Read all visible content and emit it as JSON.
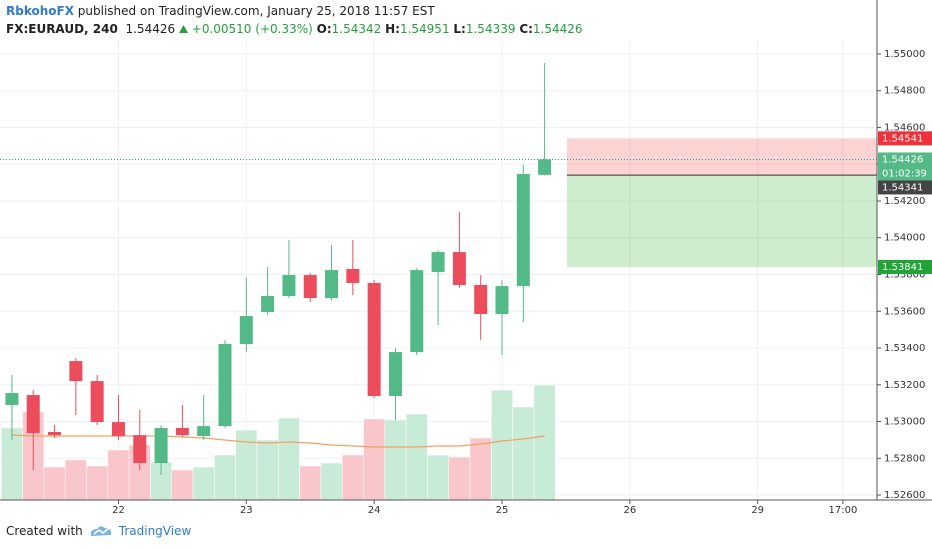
{
  "header": {
    "author": "RbkohoFX",
    "published": "published on TradingView.com, January 25, 2018 11:57 EST"
  },
  "chart_data": {
    "type": "candlestick",
    "title": "FX:EURAUD, 240",
    "change": "+0.00510",
    "change_percent": "(+0.33%)",
    "ohlc_labels": [
      "O:",
      "H:",
      "L:",
      "C:"
    ],
    "x": [
      0,
      1,
      2,
      3,
      4,
      5,
      6,
      7,
      8,
      9,
      10,
      11,
      12,
      13,
      14,
      15,
      16,
      17,
      18,
      19,
      20,
      21,
      22,
      23,
      24,
      25
    ],
    "open": [
      1.5309,
      1.53144,
      1.52943,
      1.53329,
      1.5322,
      1.52997,
      1.52926,
      1.52774,
      1.52965,
      1.52921,
      1.52975,
      1.53422,
      1.53596,
      1.53683,
      1.53797,
      1.53672,
      1.5383,
      1.53754,
      1.53139,
      1.53378,
      1.53814,
      1.53922,
      1.53743,
      1.53585,
      1.53737,
      1.54342
    ],
    "high": [
      1.53253,
      1.53171,
      1.52981,
      1.53346,
      1.53253,
      1.53144,
      1.53063,
      1.52981,
      1.5309,
      1.53144,
      1.53444,
      1.53781,
      1.53841,
      1.53988,
      1.53808,
      1.53961,
      1.53988,
      1.5377,
      1.534,
      1.53835,
      1.53933,
      1.5414,
      1.53797,
      1.5377,
      1.54396,
      1.54951
    ],
    "low": [
      1.52899,
      1.52736,
      1.5291,
      1.53035,
      1.52981,
      1.52899,
      1.52736,
      1.52709,
      1.52916,
      1.52899,
      1.52965,
      1.53378,
      1.5358,
      1.53672,
      1.5365,
      1.53661,
      1.53688,
      1.53128,
      1.53008,
      1.53362,
      1.53525,
      1.53727,
      1.53444,
      1.53362,
      1.53542,
      1.54339
    ],
    "close": [
      1.53155,
      1.52937,
      1.52926,
      1.5322,
      1.52997,
      1.52921,
      1.52774,
      1.52965,
      1.52926,
      1.52975,
      1.53422,
      1.53574,
      1.53683,
      1.53797,
      1.53672,
      1.53824,
      1.53754,
      1.53139,
      1.53378,
      1.53824,
      1.53922,
      1.53743,
      1.53585,
      1.53737,
      1.54347,
      1.54426
    ],
    "volume": [
      72,
      88,
      33,
      40,
      34,
      50,
      55,
      38,
      30,
      33,
      45,
      70,
      60,
      82,
      34,
      37,
      45,
      81,
      80,
      86,
      45,
      43,
      62,
      110,
      93,
      115
    ],
    "volume_ma": [
      65,
      64,
      64,
      64,
      64,
      64,
      64,
      64,
      63,
      62,
      60,
      58,
      57,
      58,
      57,
      55,
      54,
      53,
      53,
      53,
      54,
      54,
      56,
      59,
      61,
      64
    ],
    "up_color": "#53b987",
    "down_color": "#eb4d5c",
    "volume_up_color": "#c8ebd8",
    "volume_down_color": "#f8c6cb",
    "volume_ma_color": "#f0a262",
    "xlim": [
      -0.56,
      40.6
    ],
    "xticks": [
      {
        "value": 5,
        "label": "22"
      },
      {
        "value": 11,
        "label": "23"
      },
      {
        "value": 17,
        "label": "24"
      },
      {
        "value": 23,
        "label": "25"
      },
      {
        "value": 29,
        "label": "26"
      },
      {
        "value": 35,
        "label": "29"
      },
      {
        "value": 39,
        "label": "17:00"
      }
    ],
    "ylim": [
      1.52573,
      1.55076
    ],
    "yticks": [
      {
        "value": 1.526,
        "label": "1.52600"
      },
      {
        "value": 1.528,
        "label": "1.52800"
      },
      {
        "value": 1.53,
        "label": "1.53000"
      },
      {
        "value": 1.532,
        "label": "1.53200"
      },
      {
        "value": 1.534,
        "label": "1.53400"
      },
      {
        "value": 1.536,
        "label": "1.53600"
      },
      {
        "value": 1.538,
        "label": "1.53800"
      },
      {
        "value": 1.54,
        "label": "1.54000"
      },
      {
        "value": 1.542,
        "label": "1.54200"
      },
      {
        "value": 1.544,
        "label": "1.54400"
      },
      {
        "value": 1.546,
        "label": "1.54600"
      },
      {
        "value": 1.548,
        "label": "1.54800"
      },
      {
        "value": 1.55,
        "label": "1.55000"
      }
    ],
    "grid": true,
    "position": {
      "x": 26.05,
      "stop": 1.54541,
      "entry": 1.54341,
      "target": 1.53841
    },
    "countdown": "01:02:39"
  },
  "footer": {
    "created_with": "Created with",
    "brand": "TradingView"
  }
}
